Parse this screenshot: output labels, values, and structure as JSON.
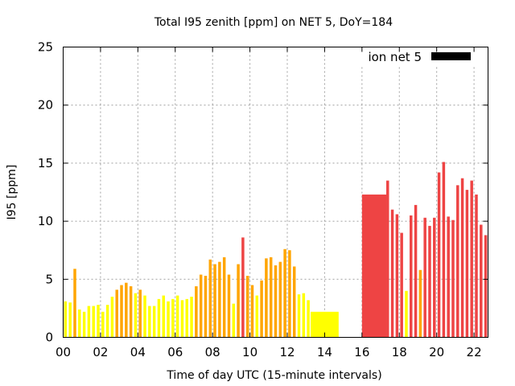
{
  "chart_data": {
    "type": "bar",
    "title": "Total I95 zenith [ppm] on NET 5, DoY=184",
    "xlabel": "Time of day UTC (15-minute intervals)",
    "ylabel": "I95 [ppm]",
    "xlim": [
      0,
      22.75
    ],
    "ylim": [
      0,
      25
    ],
    "x_ticks": [
      "00",
      "02",
      "04",
      "06",
      "08",
      "10",
      "12",
      "14",
      "16",
      "18",
      "20",
      "22"
    ],
    "y_ticks": [
      "0",
      "5",
      "10",
      "15",
      "20",
      "25"
    ],
    "grid": true,
    "legend": {
      "label": "ion net 5",
      "position": "top-right",
      "color": "#000000"
    },
    "colors": {
      "low": "#ffff00",
      "mid": "#ffa500",
      "high": "#ee4444"
    },
    "bin_width_hours": 0.25,
    "bars": [
      {
        "x": 0.0,
        "value": 3.1,
        "level": "low"
      },
      {
        "x": 0.25,
        "value": 3.0,
        "level": "low"
      },
      {
        "x": 0.5,
        "value": 5.9,
        "level": "mid"
      },
      {
        "x": 0.75,
        "value": 2.4,
        "level": "low"
      },
      {
        "x": 1.0,
        "value": 2.2,
        "level": "low"
      },
      {
        "x": 1.25,
        "value": 2.7,
        "level": "low"
      },
      {
        "x": 1.5,
        "value": 2.7,
        "level": "low"
      },
      {
        "x": 1.75,
        "value": 2.8,
        "level": "low"
      },
      {
        "x": 2.0,
        "value": 2.2,
        "level": "low"
      },
      {
        "x": 2.25,
        "value": 2.8,
        "level": "low"
      },
      {
        "x": 2.5,
        "value": 3.5,
        "level": "low"
      },
      {
        "x": 2.75,
        "value": 4.1,
        "level": "mid"
      },
      {
        "x": 3.0,
        "value": 4.5,
        "level": "mid"
      },
      {
        "x": 3.25,
        "value": 4.7,
        "level": "mid"
      },
      {
        "x": 3.5,
        "value": 4.4,
        "level": "mid"
      },
      {
        "x": 3.75,
        "value": 3.8,
        "level": "low"
      },
      {
        "x": 4.0,
        "value": 4.1,
        "level": "mid"
      },
      {
        "x": 4.25,
        "value": 3.6,
        "level": "low"
      },
      {
        "x": 4.5,
        "value": 2.7,
        "level": "low"
      },
      {
        "x": 4.75,
        "value": 2.7,
        "level": "low"
      },
      {
        "x": 5.0,
        "value": 3.3,
        "level": "low"
      },
      {
        "x": 5.25,
        "value": 3.6,
        "level": "low"
      },
      {
        "x": 5.5,
        "value": 3.1,
        "level": "low"
      },
      {
        "x": 5.75,
        "value": 3.3,
        "level": "low"
      },
      {
        "x": 6.0,
        "value": 3.6,
        "level": "low"
      },
      {
        "x": 6.25,
        "value": 3.2,
        "level": "low"
      },
      {
        "x": 6.5,
        "value": 3.3,
        "level": "low"
      },
      {
        "x": 6.75,
        "value": 3.5,
        "level": "low"
      },
      {
        "x": 7.0,
        "value": 4.4,
        "level": "mid"
      },
      {
        "x": 7.25,
        "value": 5.4,
        "level": "mid"
      },
      {
        "x": 7.5,
        "value": 5.3,
        "level": "mid"
      },
      {
        "x": 7.75,
        "value": 6.7,
        "level": "mid"
      },
      {
        "x": 8.0,
        "value": 6.3,
        "level": "mid"
      },
      {
        "x": 8.25,
        "value": 6.5,
        "level": "mid"
      },
      {
        "x": 8.5,
        "value": 6.9,
        "level": "mid"
      },
      {
        "x": 8.75,
        "value": 5.4,
        "level": "mid"
      },
      {
        "x": 9.0,
        "value": 2.9,
        "level": "low"
      },
      {
        "x": 9.25,
        "value": 6.3,
        "level": "mid"
      },
      {
        "x": 9.5,
        "value": 8.6,
        "level": "high"
      },
      {
        "x": 9.75,
        "value": 5.3,
        "level": "mid"
      },
      {
        "x": 10.0,
        "value": 4.5,
        "level": "mid"
      },
      {
        "x": 10.25,
        "value": 3.6,
        "level": "low"
      },
      {
        "x": 10.5,
        "value": 4.9,
        "level": "mid"
      },
      {
        "x": 10.75,
        "value": 6.8,
        "level": "mid"
      },
      {
        "x": 11.0,
        "value": 6.9,
        "level": "mid"
      },
      {
        "x": 11.25,
        "value": 6.2,
        "level": "mid"
      },
      {
        "x": 11.5,
        "value": 6.5,
        "level": "mid"
      },
      {
        "x": 11.75,
        "value": 7.6,
        "level": "mid"
      },
      {
        "x": 12.0,
        "value": 7.5,
        "level": "mid"
      },
      {
        "x": 12.25,
        "value": 6.1,
        "level": "mid"
      },
      {
        "x": 12.5,
        "value": 3.7,
        "level": "low"
      },
      {
        "x": 12.75,
        "value": 3.8,
        "level": "low"
      },
      {
        "x": 13.0,
        "value": 3.2,
        "level": "low"
      },
      {
        "x": 13.25,
        "value": 2.2,
        "level": "low",
        "width": 1.5
      },
      {
        "x": 16.0,
        "value": 12.3,
        "level": "high",
        "width": 1.3
      },
      {
        "x": 17.25,
        "value": 13.5,
        "level": "high"
      },
      {
        "x": 17.5,
        "value": 11.0,
        "level": "high"
      },
      {
        "x": 17.75,
        "value": 10.6,
        "level": "high"
      },
      {
        "x": 18.0,
        "value": 9.0,
        "level": "high"
      },
      {
        "x": 18.25,
        "value": 4.0,
        "level": "low"
      },
      {
        "x": 18.5,
        "value": 10.5,
        "level": "high"
      },
      {
        "x": 18.75,
        "value": 11.4,
        "level": "high"
      },
      {
        "x": 19.0,
        "value": 5.8,
        "level": "mid"
      },
      {
        "x": 19.25,
        "value": 10.3,
        "level": "high"
      },
      {
        "x": 19.5,
        "value": 9.6,
        "level": "high"
      },
      {
        "x": 19.75,
        "value": 10.3,
        "level": "high"
      },
      {
        "x": 20.0,
        "value": 14.2,
        "level": "high"
      },
      {
        "x": 20.25,
        "value": 15.1,
        "level": "high"
      },
      {
        "x": 20.5,
        "value": 10.4,
        "level": "high"
      },
      {
        "x": 20.75,
        "value": 10.1,
        "level": "high"
      },
      {
        "x": 21.0,
        "value": 13.1,
        "level": "high"
      },
      {
        "x": 21.25,
        "value": 13.7,
        "level": "high"
      },
      {
        "x": 21.5,
        "value": 12.7,
        "level": "high"
      },
      {
        "x": 21.75,
        "value": 13.5,
        "level": "high"
      },
      {
        "x": 22.0,
        "value": 12.3,
        "level": "high"
      },
      {
        "x": 22.25,
        "value": 9.7,
        "level": "high"
      },
      {
        "x": 22.5,
        "value": 8.8,
        "level": "high"
      }
    ]
  }
}
